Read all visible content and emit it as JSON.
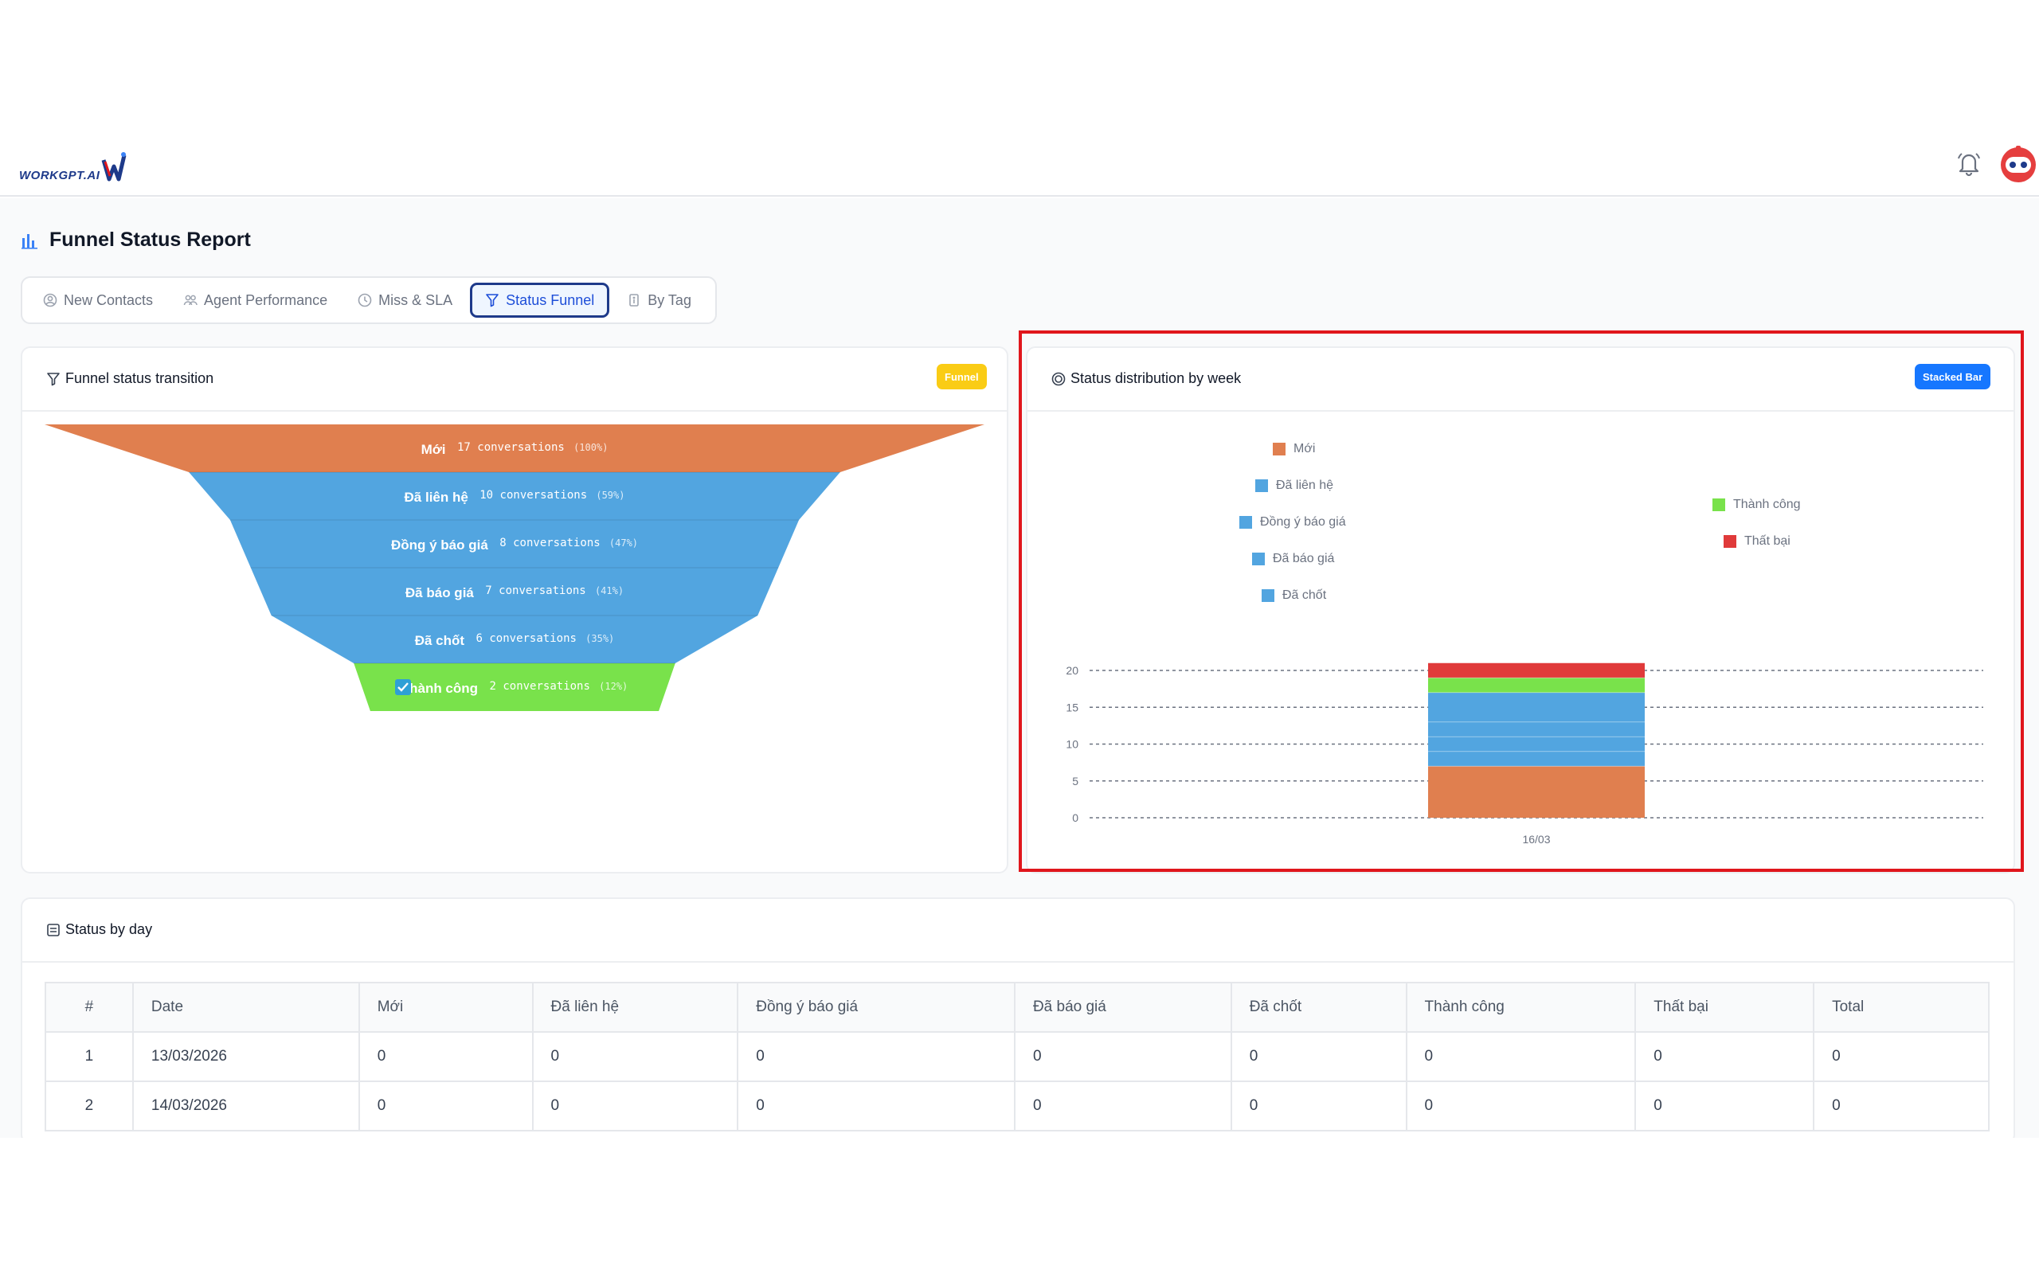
{
  "app": {
    "logo_text": "WORKGPT.AI"
  },
  "page": {
    "title": "Funnel Status Report"
  },
  "tabs": [
    {
      "label": "New Contacts",
      "icon": "user-circle-icon"
    },
    {
      "label": "Agent Performance",
      "icon": "users-icon"
    },
    {
      "label": "Miss & SLA",
      "icon": "clock-icon"
    },
    {
      "label": "Status Funnel",
      "icon": "funnel-icon",
      "active": true
    },
    {
      "label": "By Tag",
      "icon": "tag-icon"
    }
  ],
  "funnel_card": {
    "title": "Funnel status transition",
    "badge": "Funnel",
    "stages": [
      {
        "label": "Mới",
        "count": "17",
        "unit": "conversations",
        "pct": "(100%)",
        "color": "#e07f4f"
      },
      {
        "label": "Đã liên hệ",
        "count": "10",
        "unit": "conversations",
        "pct": "(59%)",
        "color": "#52a5e0"
      },
      {
        "label": "Đồng ý báo giá",
        "count": "8",
        "unit": "conversations",
        "pct": "(47%)",
        "color": "#52a5e0"
      },
      {
        "label": "Đã báo giá",
        "count": "7",
        "unit": "conversations",
        "pct": "(41%)",
        "color": "#52a5e0"
      },
      {
        "label": "Đã chốt",
        "count": "6",
        "unit": "conversations",
        "pct": "(35%)",
        "color": "#52a5e0"
      },
      {
        "label": "Thành công",
        "count": "2",
        "unit": "conversations",
        "pct": "(12%)",
        "color": "#79e24b"
      }
    ]
  },
  "chart_card": {
    "title": "Status distribution by week",
    "badge": "Stacked Bar"
  },
  "chart_data": {
    "type": "bar",
    "stacked": true,
    "categories": [
      "16/03"
    ],
    "series": [
      {
        "name": "Mới",
        "values": [
          7
        ],
        "color": "#e07f4f"
      },
      {
        "name": "Đã liên hệ",
        "values": [
          2
        ],
        "color": "#52a5e0"
      },
      {
        "name": "Đồng ý báo giá",
        "values": [
          2
        ],
        "color": "#52a5e0"
      },
      {
        "name": "Đã báo giá",
        "values": [
          2
        ],
        "color": "#52a5e0"
      },
      {
        "name": "Đã chốt",
        "values": [
          4
        ],
        "color": "#52a5e0"
      },
      {
        "name": "Thành công",
        "values": [
          2
        ],
        "color": "#79e24b"
      },
      {
        "name": "Thất bại",
        "values": [
          2
        ],
        "color": "#e03a3a"
      }
    ],
    "yticks": [
      0,
      5,
      10,
      15,
      20
    ],
    "ylim": [
      0,
      20
    ],
    "grid": true,
    "legend": "top"
  },
  "table": {
    "title": "Status by day",
    "columns": [
      "#",
      "Date",
      "Mới",
      "Đã liên hệ",
      "Đồng ý báo giá",
      "Đã báo giá",
      "Đã chốt",
      "Thành công",
      "Thất bại",
      "Total"
    ],
    "rows": [
      [
        "1",
        "13/03/2026",
        "0",
        "0",
        "0",
        "0",
        "0",
        "0",
        "0",
        "0"
      ],
      [
        "2",
        "14/03/2026",
        "0",
        "0",
        "0",
        "0",
        "0",
        "0",
        "0",
        "0"
      ]
    ]
  }
}
